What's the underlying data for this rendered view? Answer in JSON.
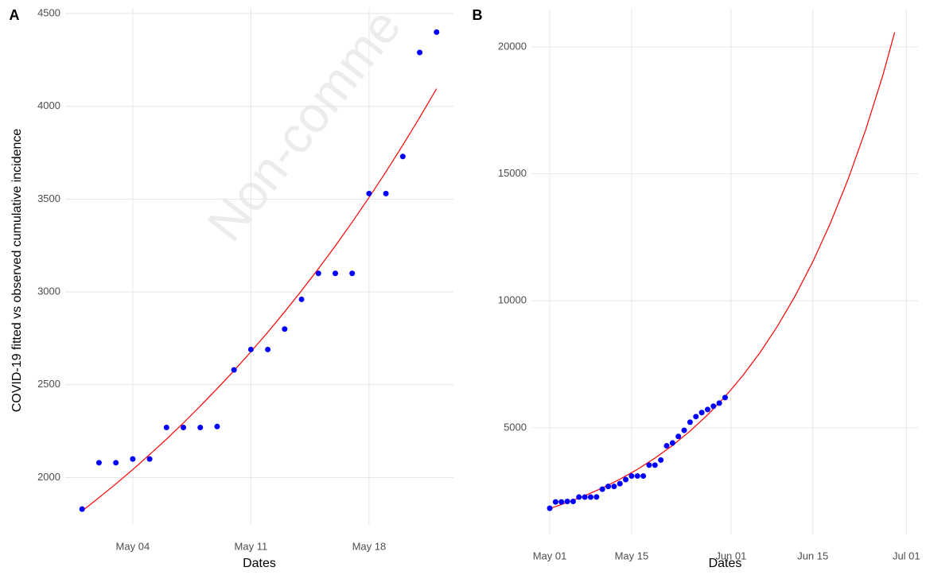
{
  "chart_data": [
    {
      "type": "line",
      "panel_label": "A",
      "watermark": "Non-comme",
      "y_label": "COVID-19 fitted vs observed cumulative incidence",
      "x_label": "Dates",
      "xlim": [
        "Apr 30",
        "May 23"
      ],
      "xticks": [
        "May 04",
        "May 11",
        "May 18"
      ],
      "ylim": [
        1745,
        4530
      ],
      "yticks": [
        2000,
        2500,
        3000,
        3500,
        4000,
        4500
      ],
      "grid": true,
      "series": [
        {
          "type": "scatter",
          "color": "#0000ff",
          "x": [
            "May 01",
            "May 02",
            "May 03",
            "May 04",
            "May 05",
            "May 06",
            "May 07",
            "May 08",
            "May 09",
            "May 10",
            "May 11",
            "May 12",
            "May 13",
            "May 14",
            "May 15",
            "May 16",
            "May 17",
            "May 18",
            "May 19",
            "May 20",
            "May 21",
            "May 22"
          ],
          "values": [
            1830,
            2080,
            2080,
            2100,
            2100,
            2270,
            2270,
            2270,
            2275,
            2580,
            2690,
            2690,
            2800,
            2960,
            3100,
            3100,
            3100,
            3530,
            3530,
            3730,
            4290,
            4400
          ]
        },
        {
          "type": "line",
          "color": "#ff0000",
          "x": [
            "May 01",
            "May 02",
            "May 03",
            "May 04",
            "May 05",
            "May 06",
            "May 07",
            "May 08",
            "May 09",
            "May 10",
            "May 11",
            "May 12",
            "May 13",
            "May 14",
            "May 15",
            "May 16",
            "May 17",
            "May 18",
            "May 19",
            "May 20",
            "May 21",
            "May 22"
          ],
          "values": [
            1820,
            1892,
            1966,
            2043,
            2124,
            2207,
            2294,
            2385,
            2479,
            2576,
            2678,
            2783,
            2893,
            3007,
            3125,
            3248,
            3376,
            3509,
            3647,
            3791,
            3940,
            4095
          ]
        }
      ]
    },
    {
      "type": "line",
      "panel_label": "B",
      "x_label": "Dates",
      "xlim": [
        "Apr 28",
        "Jul 03"
      ],
      "xticks": [
        "May 01",
        "May 15",
        "Jun 01",
        "Jun 15",
        "Jul 01"
      ],
      "ylim": [
        800,
        21500
      ],
      "yticks": [
        5000,
        10000,
        15000,
        20000
      ],
      "grid": true,
      "series": [
        {
          "type": "scatter",
          "color": "#0000ff",
          "x": [
            "May 01",
            "May 02",
            "May 03",
            "May 04",
            "May 05",
            "May 06",
            "May 07",
            "May 08",
            "May 09",
            "May 10",
            "May 11",
            "May 12",
            "May 13",
            "May 14",
            "May 15",
            "May 16",
            "May 17",
            "May 18",
            "May 19",
            "May 20",
            "May 21",
            "May 22",
            "May 23",
            "May 24",
            "May 25",
            "May 26",
            "May 27",
            "May 28",
            "May 29",
            "May 30",
            "May 31"
          ],
          "values": [
            1830,
            2080,
            2080,
            2100,
            2100,
            2270,
            2270,
            2270,
            2275,
            2580,
            2690,
            2690,
            2800,
            2960,
            3100,
            3100,
            3100,
            3530,
            3530,
            3730,
            4290,
            4400,
            4660,
            4900,
            5220,
            5440,
            5600,
            5720,
            5850,
            5970,
            6190
          ]
        },
        {
          "type": "line",
          "color": "#ff0000",
          "x": [
            "May 01",
            "May 04",
            "May 07",
            "May 10",
            "May 13",
            "May 16",
            "May 19",
            "May 22",
            "May 25",
            "May 28",
            "May 31",
            "Jun 03",
            "Jun 06",
            "Jun 09",
            "Jun 12",
            "Jun 15",
            "Jun 18",
            "Jun 21",
            "Jun 24",
            "Jun 27",
            "Jun 29"
          ],
          "values": [
            1820,
            2057,
            2326,
            2630,
            2974,
            3364,
            3805,
            4304,
            4869,
            5507,
            6230,
            7047,
            7972,
            9018,
            10201,
            11539,
            13053,
            14766,
            16703,
            18895,
            20570
          ]
        }
      ]
    }
  ]
}
